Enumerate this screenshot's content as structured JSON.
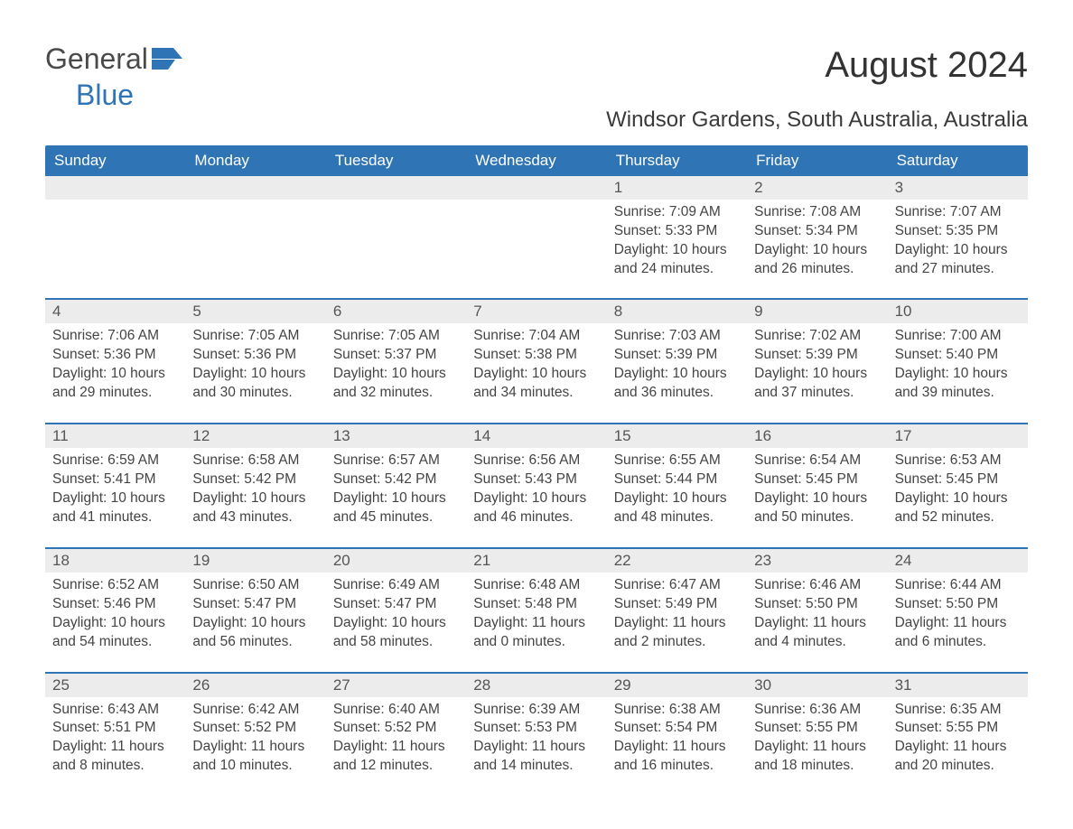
{
  "logo": {
    "general": "General",
    "blue": "Blue"
  },
  "title": "August 2024",
  "location": "Windsor Gardens, South Australia, Australia",
  "colors": {
    "header_bg": "#2f74b5",
    "header_text": "#ffffff",
    "daynum_bg": "#ececec",
    "week_border": "#2f74b5",
    "text": "#444444"
  },
  "weekdays": [
    "Sunday",
    "Monday",
    "Tuesday",
    "Wednesday",
    "Thursday",
    "Friday",
    "Saturday"
  ],
  "weeks": [
    {
      "nums": [
        "",
        "",
        "",
        "",
        "1",
        "2",
        "3"
      ],
      "cells": [
        {
          "sunrise": "",
          "sunset": "",
          "daylight": ""
        },
        {
          "sunrise": "",
          "sunset": "",
          "daylight": ""
        },
        {
          "sunrise": "",
          "sunset": "",
          "daylight": ""
        },
        {
          "sunrise": "",
          "sunset": "",
          "daylight": ""
        },
        {
          "sunrise": "Sunrise: 7:09 AM",
          "sunset": "Sunset: 5:33 PM",
          "daylight": "Daylight: 10 hours and 24 minutes."
        },
        {
          "sunrise": "Sunrise: 7:08 AM",
          "sunset": "Sunset: 5:34 PM",
          "daylight": "Daylight: 10 hours and 26 minutes."
        },
        {
          "sunrise": "Sunrise: 7:07 AM",
          "sunset": "Sunset: 5:35 PM",
          "daylight": "Daylight: 10 hours and 27 minutes."
        }
      ]
    },
    {
      "nums": [
        "4",
        "5",
        "6",
        "7",
        "8",
        "9",
        "10"
      ],
      "cells": [
        {
          "sunrise": "Sunrise: 7:06 AM",
          "sunset": "Sunset: 5:36 PM",
          "daylight": "Daylight: 10 hours and 29 minutes."
        },
        {
          "sunrise": "Sunrise: 7:05 AM",
          "sunset": "Sunset: 5:36 PM",
          "daylight": "Daylight: 10 hours and 30 minutes."
        },
        {
          "sunrise": "Sunrise: 7:05 AM",
          "sunset": "Sunset: 5:37 PM",
          "daylight": "Daylight: 10 hours and 32 minutes."
        },
        {
          "sunrise": "Sunrise: 7:04 AM",
          "sunset": "Sunset: 5:38 PM",
          "daylight": "Daylight: 10 hours and 34 minutes."
        },
        {
          "sunrise": "Sunrise: 7:03 AM",
          "sunset": "Sunset: 5:39 PM",
          "daylight": "Daylight: 10 hours and 36 minutes."
        },
        {
          "sunrise": "Sunrise: 7:02 AM",
          "sunset": "Sunset: 5:39 PM",
          "daylight": "Daylight: 10 hours and 37 minutes."
        },
        {
          "sunrise": "Sunrise: 7:00 AM",
          "sunset": "Sunset: 5:40 PM",
          "daylight": "Daylight: 10 hours and 39 minutes."
        }
      ]
    },
    {
      "nums": [
        "11",
        "12",
        "13",
        "14",
        "15",
        "16",
        "17"
      ],
      "cells": [
        {
          "sunrise": "Sunrise: 6:59 AM",
          "sunset": "Sunset: 5:41 PM",
          "daylight": "Daylight: 10 hours and 41 minutes."
        },
        {
          "sunrise": "Sunrise: 6:58 AM",
          "sunset": "Sunset: 5:42 PM",
          "daylight": "Daylight: 10 hours and 43 minutes."
        },
        {
          "sunrise": "Sunrise: 6:57 AM",
          "sunset": "Sunset: 5:42 PM",
          "daylight": "Daylight: 10 hours and 45 minutes."
        },
        {
          "sunrise": "Sunrise: 6:56 AM",
          "sunset": "Sunset: 5:43 PM",
          "daylight": "Daylight: 10 hours and 46 minutes."
        },
        {
          "sunrise": "Sunrise: 6:55 AM",
          "sunset": "Sunset: 5:44 PM",
          "daylight": "Daylight: 10 hours and 48 minutes."
        },
        {
          "sunrise": "Sunrise: 6:54 AM",
          "sunset": "Sunset: 5:45 PM",
          "daylight": "Daylight: 10 hours and 50 minutes."
        },
        {
          "sunrise": "Sunrise: 6:53 AM",
          "sunset": "Sunset: 5:45 PM",
          "daylight": "Daylight: 10 hours and 52 minutes."
        }
      ]
    },
    {
      "nums": [
        "18",
        "19",
        "20",
        "21",
        "22",
        "23",
        "24"
      ],
      "cells": [
        {
          "sunrise": "Sunrise: 6:52 AM",
          "sunset": "Sunset: 5:46 PM",
          "daylight": "Daylight: 10 hours and 54 minutes."
        },
        {
          "sunrise": "Sunrise: 6:50 AM",
          "sunset": "Sunset: 5:47 PM",
          "daylight": "Daylight: 10 hours and 56 minutes."
        },
        {
          "sunrise": "Sunrise: 6:49 AM",
          "sunset": "Sunset: 5:47 PM",
          "daylight": "Daylight: 10 hours and 58 minutes."
        },
        {
          "sunrise": "Sunrise: 6:48 AM",
          "sunset": "Sunset: 5:48 PM",
          "daylight": "Daylight: 11 hours and 0 minutes."
        },
        {
          "sunrise": "Sunrise: 6:47 AM",
          "sunset": "Sunset: 5:49 PM",
          "daylight": "Daylight: 11 hours and 2 minutes."
        },
        {
          "sunrise": "Sunrise: 6:46 AM",
          "sunset": "Sunset: 5:50 PM",
          "daylight": "Daylight: 11 hours and 4 minutes."
        },
        {
          "sunrise": "Sunrise: 6:44 AM",
          "sunset": "Sunset: 5:50 PM",
          "daylight": "Daylight: 11 hours and 6 minutes."
        }
      ]
    },
    {
      "nums": [
        "25",
        "26",
        "27",
        "28",
        "29",
        "30",
        "31"
      ],
      "cells": [
        {
          "sunrise": "Sunrise: 6:43 AM",
          "sunset": "Sunset: 5:51 PM",
          "daylight": "Daylight: 11 hours and 8 minutes."
        },
        {
          "sunrise": "Sunrise: 6:42 AM",
          "sunset": "Sunset: 5:52 PM",
          "daylight": "Daylight: 11 hours and 10 minutes."
        },
        {
          "sunrise": "Sunrise: 6:40 AM",
          "sunset": "Sunset: 5:52 PM",
          "daylight": "Daylight: 11 hours and 12 minutes."
        },
        {
          "sunrise": "Sunrise: 6:39 AM",
          "sunset": "Sunset: 5:53 PM",
          "daylight": "Daylight: 11 hours and 14 minutes."
        },
        {
          "sunrise": "Sunrise: 6:38 AM",
          "sunset": "Sunset: 5:54 PM",
          "daylight": "Daylight: 11 hours and 16 minutes."
        },
        {
          "sunrise": "Sunrise: 6:36 AM",
          "sunset": "Sunset: 5:55 PM",
          "daylight": "Daylight: 11 hours and 18 minutes."
        },
        {
          "sunrise": "Sunrise: 6:35 AM",
          "sunset": "Sunset: 5:55 PM",
          "daylight": "Daylight: 11 hours and 20 minutes."
        }
      ]
    }
  ]
}
